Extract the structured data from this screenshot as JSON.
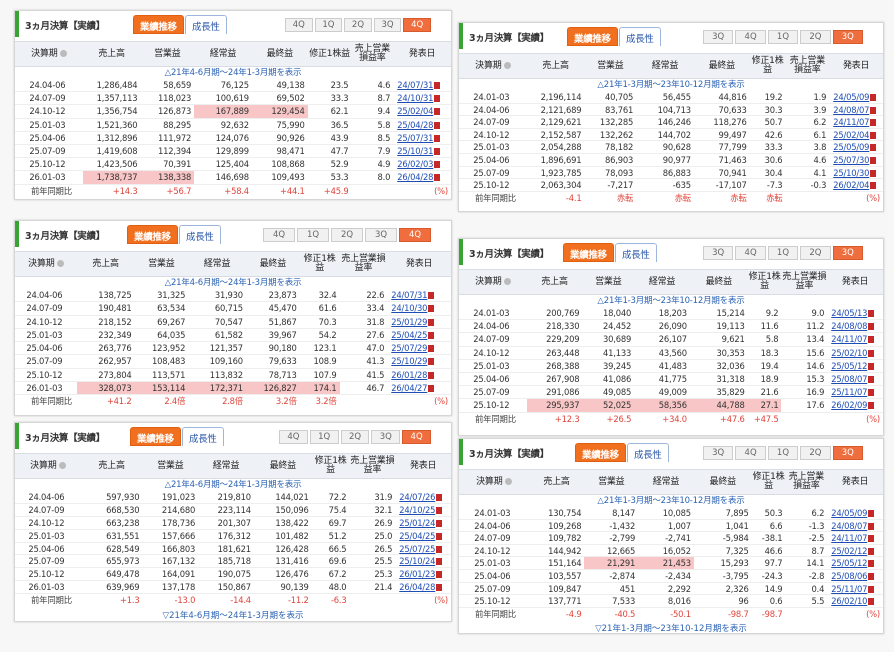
{
  "common": {
    "title": "3ヵ月決算【実績】",
    "tab_active": "業績推移",
    "tab_other": "成長性",
    "pdf_icon": "pdf-icon"
  },
  "panels": [
    {
      "id": "p1",
      "quarters": [
        "4Q",
        "1Q",
        "2Q",
        "3Q",
        "4Q"
      ],
      "active_q": 4,
      "headers": [
        "決算期",
        "売上高",
        "営業益",
        "経常益",
        "最終益",
        "修正1株益",
        "売上営業損益率",
        "発表日"
      ],
      "sub": "△21年4-6月期～24年1-3月期を表示",
      "rows": [
        [
          "24.04-06",
          "1,286,484",
          "58,659",
          "76,125",
          "49,138",
          "23.5",
          "4.6",
          "24/07/31"
        ],
        [
          "24.07-09",
          "1,357,113",
          "118,023",
          "100,619",
          "69,502",
          "33.3",
          "8.7",
          "24/10/31"
        ],
        [
          "24.10-12",
          "1,356,754",
          "126,873",
          "167,889",
          "129,454",
          "62.1",
          "9.4",
          "25/02/04"
        ],
        [
          "25.01-03",
          "1,521,360",
          "88,295",
          "92,632",
          "75,990",
          "36.5",
          "5.8",
          "25/04/28"
        ],
        [
          "25.04-06",
          "1,312,896",
          "111,972",
          "124,076",
          "90,926",
          "43.9",
          "8.5",
          "25/07/31"
        ],
        [
          "25.07-09",
          "1,419,608",
          "112,394",
          "129,899",
          "98,471",
          "47.7",
          "7.9",
          "25/10/31"
        ],
        [
          "25.10-12",
          "1,423,506",
          "70,391",
          "125,404",
          "108,868",
          "52.9",
          "4.9",
          "26/02/03"
        ],
        [
          "26.01-03",
          "1,738,737",
          "138,338",
          "146,698",
          "109,493",
          "53.3",
          "8.0",
          "26/04/28"
        ]
      ],
      "cmp": [
        "前年同期比",
        "+14.3",
        "+56.7",
        "+58.4",
        "+44.1",
        "+45.9",
        "",
        "(%)"
      ]
    },
    {
      "id": "p2",
      "quarters": [
        "3Q",
        "4Q",
        "1Q",
        "2Q",
        "3Q"
      ],
      "active_q": 4,
      "headers": [
        "決算期",
        "売上高",
        "営業益",
        "経常益",
        "最終益",
        "修正1株益",
        "売上営業損益率",
        "発表日"
      ],
      "sub": "△21年1-3月期～23年10-12月期を表示",
      "rows": [
        [
          "24.01-03",
          "2,196,114",
          "40,705",
          "56,455",
          "44,816",
          "19.2",
          "1.9",
          "24/05/09"
        ],
        [
          "24.04-06",
          "2,121,689",
          "83,761",
          "104,713",
          "70,633",
          "30.3",
          "3.9",
          "24/08/07"
        ],
        [
          "24.07-09",
          "2,129,621",
          "132,285",
          "146,246",
          "118,276",
          "50.7",
          "6.2",
          "24/11/07"
        ],
        [
          "24.10-12",
          "2,152,587",
          "132,262",
          "144,702",
          "99,497",
          "42.6",
          "6.1",
          "25/02/04"
        ],
        [
          "25.01-03",
          "2,054,288",
          "78,182",
          "90,628",
          "77,799",
          "33.3",
          "3.8",
          "25/05/09"
        ],
        [
          "25.04-06",
          "1,896,691",
          "86,903",
          "90,977",
          "71,463",
          "30.6",
          "4.6",
          "25/07/30"
        ],
        [
          "25.07-09",
          "1,923,785",
          "78,093",
          "86,883",
          "70,941",
          "30.4",
          "4.1",
          "25/10/30"
        ],
        [
          "25.10-12",
          "2,063,304",
          "-7,217",
          "-635",
          "-17,107",
          "-7.3",
          "-0.3",
          "26/02/04"
        ]
      ],
      "cmp": [
        "前年同期比",
        "-4.1",
        "赤転",
        "赤転",
        "赤転",
        "赤転",
        "",
        "(%)"
      ]
    },
    {
      "id": "p3",
      "quarters": [
        "4Q",
        "1Q",
        "2Q",
        "3Q",
        "4Q"
      ],
      "active_q": 4,
      "headers": [
        "決算期",
        "売上高",
        "営業益",
        "経常益",
        "最終益",
        "修正1株益",
        "売上営業損益率",
        "発表日"
      ],
      "sub": "△21年4-6月期～24年1-3月期を表示",
      "rows": [
        [
          "24.04-06",
          "138,725",
          "31,325",
          "31,930",
          "23,873",
          "32.4",
          "22.6",
          "24/07/31"
        ],
        [
          "24.07-09",
          "190,481",
          "63,534",
          "60,715",
          "45,470",
          "61.6",
          "33.4",
          "24/10/30"
        ],
        [
          "24.10-12",
          "218,152",
          "69,267",
          "70,547",
          "51,867",
          "70.3",
          "31.8",
          "25/01/29"
        ],
        [
          "25.01-03",
          "232,349",
          "64,035",
          "61,582",
          "39,967",
          "54.2",
          "27.6",
          "25/04/25"
        ],
        [
          "25.04-06",
          "263,776",
          "123,952",
          "121,357",
          "90,180",
          "123.1",
          "47.0",
          "25/07/29"
        ],
        [
          "25.07-09",
          "262,957",
          "108,483",
          "109,160",
          "79,633",
          "108.9",
          "41.3",
          "25/10/29"
        ],
        [
          "25.10-12",
          "273,804",
          "113,571",
          "113,832",
          "78,713",
          "107.9",
          "41.5",
          "26/01/28"
        ],
        [
          "26.01-03",
          "328,073",
          "153,114",
          "172,371",
          "126,827",
          "174.1",
          "46.7",
          "26/04/27"
        ]
      ],
      "cmp": [
        "前年同期比",
        "+41.2",
        "2.4倍",
        "2.8倍",
        "3.2倍",
        "3.2倍",
        "",
        "(%)"
      ]
    },
    {
      "id": "p4",
      "quarters": [
        "3Q",
        "4Q",
        "1Q",
        "2Q",
        "3Q"
      ],
      "active_q": 4,
      "headers": [
        "決算期",
        "売上高",
        "営業益",
        "経常益",
        "最終益",
        "修正1株益",
        "売上営業損益率",
        "発表日"
      ],
      "sub": "△21年1-3月期～23年10-12月期を表示",
      "rows": [
        [
          "24.01-03",
          "200,769",
          "18,040",
          "18,203",
          "15,214",
          "9.2",
          "9.0",
          "24/05/13"
        ],
        [
          "24.04-06",
          "218,330",
          "24,452",
          "26,090",
          "19,113",
          "11.6",
          "11.2",
          "24/08/08"
        ],
        [
          "24.07-09",
          "229,209",
          "30,689",
          "26,107",
          "9,621",
          "5.8",
          "13.4",
          "24/11/07"
        ],
        [
          "24.10-12",
          "263,448",
          "41,133",
          "43,560",
          "30,353",
          "18.3",
          "15.6",
          "25/02/10"
        ],
        [
          "25.01-03",
          "268,388",
          "39,245",
          "41,483",
          "32,036",
          "19.4",
          "14.6",
          "25/05/12"
        ],
        [
          "25.04-06",
          "267,908",
          "41,086",
          "41,775",
          "31,318",
          "18.9",
          "15.3",
          "25/08/07"
        ],
        [
          "25.07-09",
          "291,086",
          "49,085",
          "49,009",
          "35,829",
          "21.6",
          "16.9",
          "25/11/07"
        ],
        [
          "25.10-12",
          "295,937",
          "52,025",
          "58,356",
          "44,788",
          "27.1",
          "17.6",
          "26/02/09"
        ]
      ],
      "cmp": [
        "前年同期比",
        "+12.3",
        "+26.5",
        "+34.0",
        "+47.6",
        "+47.5",
        "",
        "(%)"
      ]
    },
    {
      "id": "p5",
      "quarters": [
        "4Q",
        "1Q",
        "2Q",
        "3Q",
        "4Q"
      ],
      "active_q": 4,
      "headers": [
        "決算期",
        "売上高",
        "営業益",
        "経常益",
        "最終益",
        "修正1株益",
        "売上営業損益率",
        "発表日"
      ],
      "sub": "△21年4-6月期～24年1-3月期を表示",
      "rows": [
        [
          "24.04-06",
          "597,930",
          "191,023",
          "219,810",
          "144,021",
          "72.2",
          "31.9",
          "24/07/26"
        ],
        [
          "24.07-09",
          "668,530",
          "214,680",
          "223,114",
          "150,096",
          "75.4",
          "32.1",
          "24/10/25"
        ],
        [
          "24.10-12",
          "663,238",
          "178,736",
          "201,307",
          "138,422",
          "69.7",
          "26.9",
          "25/01/24"
        ],
        [
          "25.01-03",
          "631,551",
          "157,666",
          "176,312",
          "101,482",
          "51.2",
          "25.0",
          "25/04/25"
        ],
        [
          "25.04-06",
          "628,549",
          "166,803",
          "181,621",
          "126,428",
          "66.5",
          "26.5",
          "25/07/25"
        ],
        [
          "25.07-09",
          "655,973",
          "167,132",
          "185,718",
          "131,416",
          "69.6",
          "25.5",
          "25/10/24"
        ],
        [
          "25.10-12",
          "649,478",
          "164,091",
          "190,075",
          "126,476",
          "67.2",
          "25.3",
          "26/01/23"
        ],
        [
          "26.01-03",
          "639,969",
          "137,178",
          "150,867",
          "90,139",
          "48.0",
          "21.4",
          "26/04/28"
        ]
      ],
      "cmp": [
        "前年同期比",
        "+1.3",
        "-13.0",
        "-14.4",
        "-11.2",
        "-6.3",
        "",
        "(%)"
      ],
      "foot": "▽21年4-6月期～24年1-3月期を表示"
    },
    {
      "id": "p6",
      "quarters": [
        "3Q",
        "4Q",
        "1Q",
        "2Q",
        "3Q"
      ],
      "active_q": 4,
      "headers": [
        "決算期",
        "売上高",
        "営業益",
        "経常益",
        "最終益",
        "修正1株益",
        "売上営業損益率",
        "発表日"
      ],
      "sub": "△21年1-3月期～23年10-12月期を表示",
      "rows": [
        [
          "24.01-03",
          "130,754",
          "8,147",
          "10,085",
          "7,895",
          "50.3",
          "6.2",
          "24/05/09"
        ],
        [
          "24.04-06",
          "109,268",
          "-1,432",
          "1,007",
          "1,041",
          "6.6",
          "-1.3",
          "24/08/07"
        ],
        [
          "24.07-09",
          "109,782",
          "-2,799",
          "-2,741",
          "-5,984",
          "-38.1",
          "-2.5",
          "24/11/07"
        ],
        [
          "24.10-12",
          "144,942",
          "12,665",
          "16,052",
          "7,325",
          "46.6",
          "8.7",
          "25/02/12"
        ],
        [
          "25.01-03",
          "151,164",
          "21,291",
          "21,453",
          "15,293",
          "97.7",
          "14.1",
          "25/05/12"
        ],
        [
          "25.04-06",
          "103,557",
          "-2,874",
          "-2,434",
          "-3,795",
          "-24.3",
          "-2.8",
          "25/08/06"
        ],
        [
          "25.07-09",
          "109,847",
          "451",
          "2,292",
          "2,326",
          "14.9",
          "0.4",
          "25/11/07"
        ],
        [
          "25.10-12",
          "137,771",
          "7,533",
          "8,016",
          "96",
          "0.6",
          "5.5",
          "26/02/10"
        ]
      ],
      "cmp": [
        "前年同期比",
        "-4.9",
        "-40.5",
        "-50.1",
        "-98.7",
        "-98.7",
        "",
        "(%)"
      ],
      "foot": "▽21年1-3月期～23年10-12月期を表示"
    }
  ]
}
